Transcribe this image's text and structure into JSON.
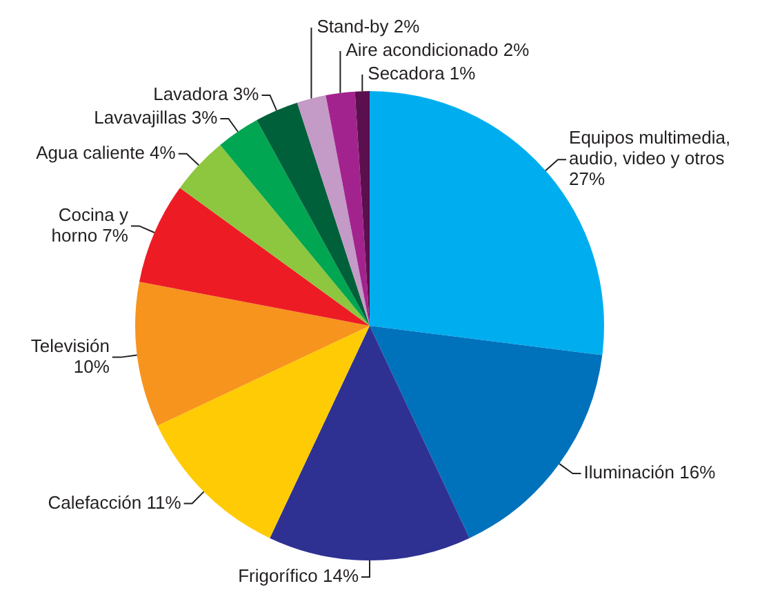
{
  "chart_data": {
    "type": "pie",
    "categories": [
      "Equipos multimedia, audio, video y otros",
      "Iluminación",
      "Frigorífico",
      "Calefacción",
      "Televisión",
      "Cocina y horno",
      "Agua caliente",
      "Lavavajillas",
      "Lavadora",
      "Stand-by",
      "Aire acondicionado",
      "Secadora"
    ],
    "values": [
      27,
      16,
      14,
      11,
      10,
      7,
      4,
      3,
      3,
      2,
      2,
      1
    ],
    "value_labels": [
      "27%",
      "16%",
      "14%",
      "11%",
      "10%",
      "7%",
      "4%",
      "3%",
      "3%",
      "2%",
      "2%",
      "1%"
    ],
    "colors": [
      "#00aeef",
      "#0072bc",
      "#2e3192",
      "#ffcb05",
      "#f7941d",
      "#ed1c24",
      "#8dc63f",
      "#00a651",
      "#00603a",
      "#c49ac7",
      "#a3238e",
      "#5c0f4e"
    ],
    "legend": false
  }
}
